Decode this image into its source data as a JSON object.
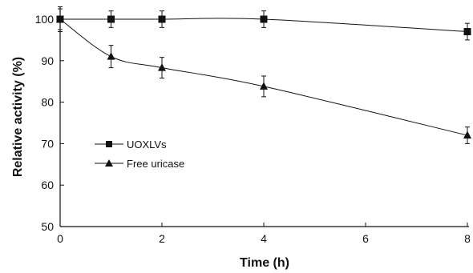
{
  "chart_data": {
    "type": "line",
    "xlabel": "Time (h)",
    "ylabel": "Relative activity (%)",
    "xlim": [
      0,
      8
    ],
    "ylim": [
      50,
      100
    ],
    "x_ticks": [
      "0",
      "2",
      "4",
      "6",
      "8"
    ],
    "y_ticks": [
      "50",
      "60",
      "70",
      "80",
      "90",
      "100"
    ],
    "grid": false,
    "legend_position": "center-left",
    "series": [
      {
        "name": "UOXLVs",
        "marker": "square",
        "color": "#111111",
        "x": [
          0,
          1,
          2,
          4,
          8
        ],
        "y": [
          100,
          100,
          100,
          100,
          97
        ],
        "error": [
          2.5,
          2,
          2,
          2,
          2
        ]
      },
      {
        "name": "Free uricase",
        "marker": "triangle",
        "color": "#111111",
        "x": [
          0,
          1,
          2,
          4,
          8
        ],
        "y": [
          100,
          91,
          88.3,
          83.8,
          72
        ],
        "error": [
          3,
          2.7,
          2.5,
          2.5,
          2
        ]
      }
    ]
  }
}
